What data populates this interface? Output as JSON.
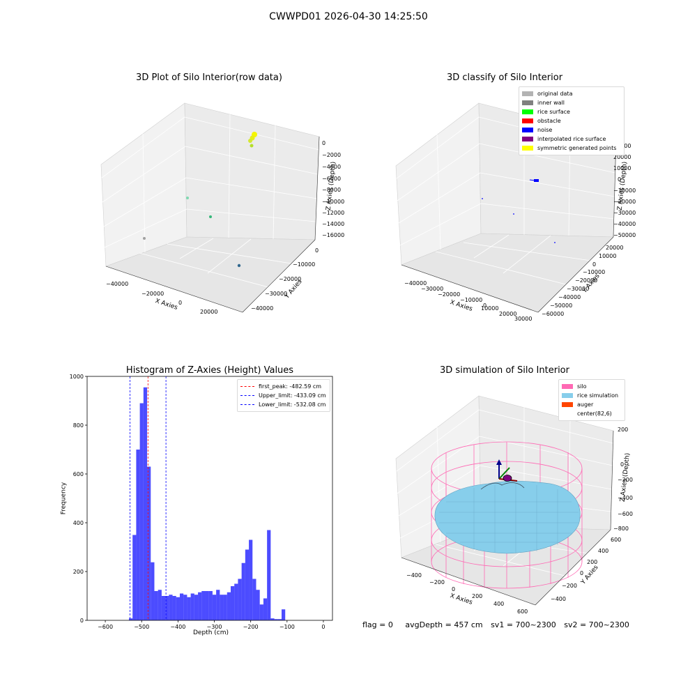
{
  "figure": {
    "suptitle": "CWWPD01 2026-04-30 14:25:50"
  },
  "status": {
    "flag": "flag = 0",
    "avg_depth": "avgDepth = 457 cm",
    "sv1": "sv1 = 700~2300",
    "sv2": "sv2 = 700~2300"
  },
  "chart_data": [
    {
      "type": "scatter",
      "projection": "3d",
      "title": "3D Plot of Silo Interior(row data)",
      "xlabel": "X Axies",
      "ylabel": "Y Axies",
      "zlabel": "Z Axies (Depth)",
      "xticks": [
        "−40000",
        "−20000",
        "0",
        "20000"
      ],
      "yticks": [
        "0",
        "−10000",
        "−20000",
        "−30000",
        "−40000"
      ],
      "zticks": [
        "0",
        "−2000",
        "−4000",
        "−6000",
        "−8000",
        "−10000",
        "−12000",
        "−14000",
        "−16000"
      ],
      "grid": true,
      "points_description": "cluster of yellow-green points near z≈0 at top right; scattered teal/blue/grey outlier points at lower depths"
    },
    {
      "type": "scatter",
      "projection": "3d",
      "title": "3D classify of Silo Interior",
      "xlabel": "X Axies",
      "ylabel": "Y Axies",
      "zlabel": "Z Axies (Depth)",
      "xticks": [
        "−40000",
        "−30000",
        "−20000",
        "−10000",
        "0",
        "10000",
        "20000",
        "30000"
      ],
      "yticks": [
        "20000",
        "10000",
        "0",
        "−10000",
        "−20000",
        "−30000",
        "−40000",
        "−50000",
        "−60000"
      ],
      "zticks": [
        "30000",
        "20000",
        "10000",
        "0",
        "−10000",
        "−20000",
        "−30000",
        "−40000",
        "−50000"
      ],
      "grid": true,
      "legend_position": "top-right",
      "legend": [
        {
          "label": "original data",
          "color": "#b3b3b3"
        },
        {
          "label": "inner wall",
          "color": "#808080"
        },
        {
          "label": "rice surface",
          "color": "#00ff00"
        },
        {
          "label": "obstacle",
          "color": "#ff0000"
        },
        {
          "label": "noise",
          "color": "#0000ff"
        },
        {
          "label": "interpolated rice surface",
          "color": "#800080"
        },
        {
          "label": "symmetric generated points",
          "color": "#ffff00"
        }
      ]
    },
    {
      "type": "bar",
      "title": "Histogram of Z-Axies (Height) Values",
      "xlabel": "Depth (cm)",
      "ylabel": "Frequency",
      "xlim": [
        -650,
        25
      ],
      "ylim": [
        0,
        1000
      ],
      "xticks": [
        -600,
        -500,
        -400,
        -300,
        -200,
        -100,
        0
      ],
      "xtick_labels": [
        "−600",
        "−500",
        "−400",
        "−300",
        "−200",
        "−100",
        "0"
      ],
      "yticks": [
        0,
        200,
        400,
        600,
        800,
        1000
      ],
      "bar_color": "#0000ff",
      "bins": {
        "start": -535,
        "width": 10,
        "values": [
          8,
          350,
          700,
          890,
          955,
          630,
          238,
          120,
          125,
          100,
          100,
          105,
          100,
          95,
          110,
          105,
          95,
          110,
          105,
          115,
          120,
          120,
          120,
          105,
          125,
          105,
          105,
          115,
          140,
          150,
          170,
          235,
          290,
          330,
          170,
          125,
          65,
          90,
          370,
          8,
          5,
          5,
          45
        ]
      },
      "legend_position": "top-right",
      "legend": [
        {
          "label": "first_peak: -482.59 cm",
          "color": "#ff0000",
          "x": -482.59
        },
        {
          "label": "Upper_limit: -433.09 cm",
          "color": "#0000ff",
          "x": -433.09
        },
        {
          "label": "Lower_limit: -532.08 cm",
          "color": "#0000ff",
          "x": -532.08
        }
      ]
    },
    {
      "type": "surface",
      "projection": "3d",
      "title": "3D simulation of Silo Interior",
      "xlabel": "X Axies",
      "ylabel": "Y Axies",
      "zlabel": "Z Axies (Depth)",
      "xticks": [
        "−400",
        "−200",
        "0",
        "200",
        "400",
        "600"
      ],
      "yticks": [
        "600",
        "400",
        "200",
        "0",
        "−200",
        "−400"
      ],
      "zticks": [
        "200",
        "0",
        "−200",
        "−400",
        "−600",
        "−800"
      ],
      "grid": true,
      "legend_position": "top-right",
      "legend": [
        {
          "label": "silo",
          "color": "#ff69b4"
        },
        {
          "label": "rice simulation",
          "color": "#87ceeb"
        },
        {
          "label": "auger",
          "color": "#ff4500"
        },
        {
          "label": "center(82,6)",
          "color": ""
        }
      ]
    }
  ]
}
